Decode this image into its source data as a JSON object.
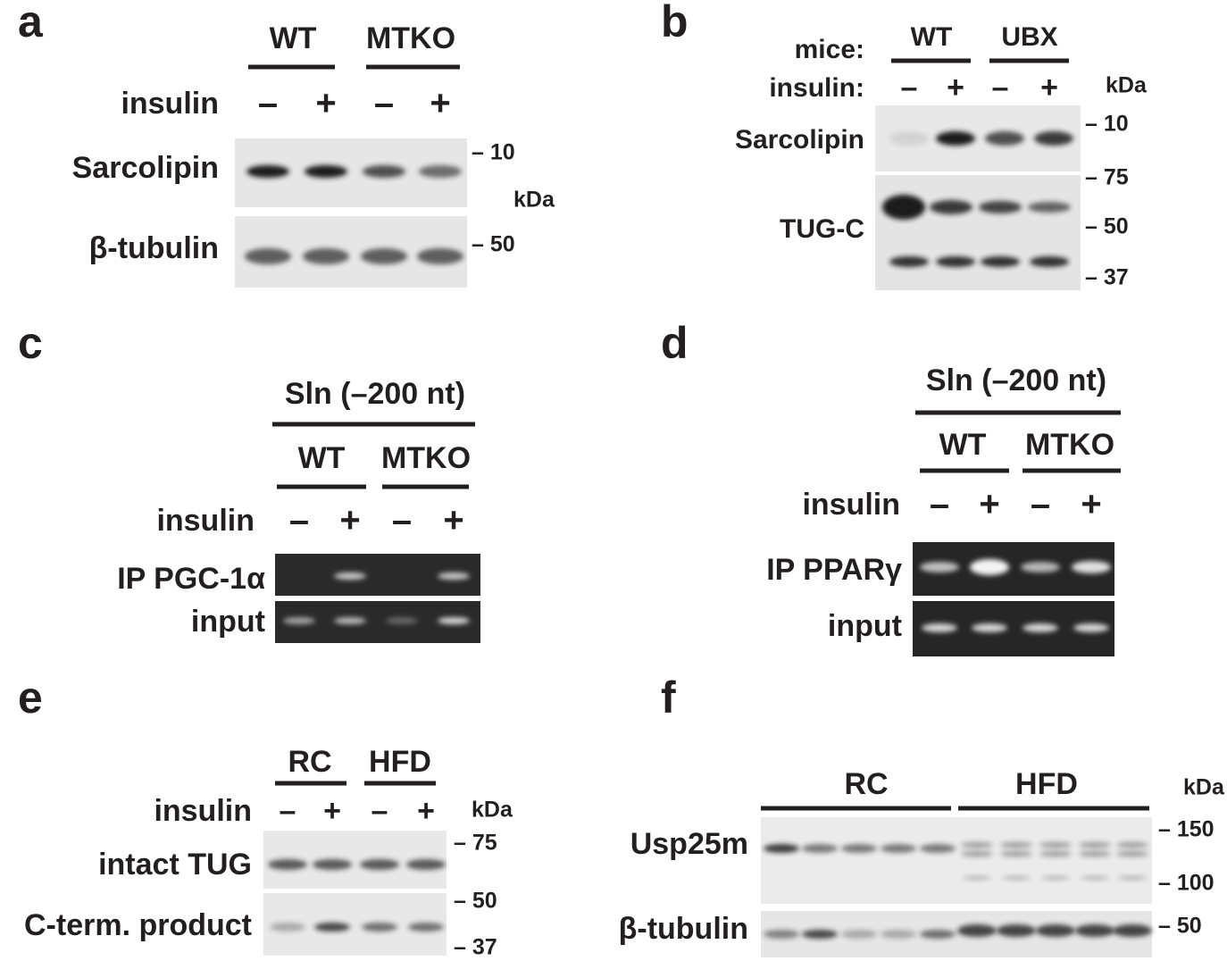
{
  "panels": [
    {
      "letter": "a",
      "groups": [
        "WT",
        "MTKO"
      ],
      "row_label": "insulin",
      "lanes": [
        "–",
        "+",
        "–",
        "+"
      ],
      "blots": [
        "Sarcolipin",
        "β-tubulin"
      ],
      "markers": [
        "– 10",
        "kDa",
        "– 50"
      ]
    },
    {
      "letter": "b",
      "row_labels": [
        "mice:",
        "insulin:"
      ],
      "groups": [
        "WT",
        "UBX"
      ],
      "lanes": [
        "–",
        "+",
        "–",
        "+"
      ],
      "unit": "kDa",
      "blots": [
        "Sarcolipin",
        "TUG-C"
      ],
      "markers": [
        "– 10",
        "– 75",
        "– 50",
        "– 37"
      ]
    },
    {
      "letter": "c",
      "header": "Sln (–200 nt)",
      "groups": [
        "WT",
        "MTKO"
      ],
      "row_label": "insulin",
      "lanes": [
        "–",
        "+",
        "–",
        "+"
      ],
      "blots": [
        "IP PGC-1α",
        "input"
      ]
    },
    {
      "letter": "d",
      "header": "Sln (–200 nt)",
      "groups": [
        "WT",
        "MTKO"
      ],
      "row_label": "insulin",
      "lanes": [
        "–",
        "+",
        "–",
        "+"
      ],
      "blots": [
        "IP PPARγ",
        "input"
      ]
    },
    {
      "letter": "e",
      "groups": [
        "RC",
        "HFD"
      ],
      "row_label": "insulin",
      "lanes": [
        "–",
        "+",
        "–",
        "+"
      ],
      "unit": "kDa",
      "blots": [
        "intact TUG",
        "C-term. product"
      ],
      "markers": [
        "– 75",
        "– 50",
        "– 37"
      ]
    },
    {
      "letter": "f",
      "groups": [
        "RC",
        "HFD"
      ],
      "unit": "kDa",
      "blots": [
        "Usp25m",
        "β-tubulin"
      ],
      "markers": [
        "– 150",
        "– 100",
        "– 50"
      ]
    }
  ]
}
